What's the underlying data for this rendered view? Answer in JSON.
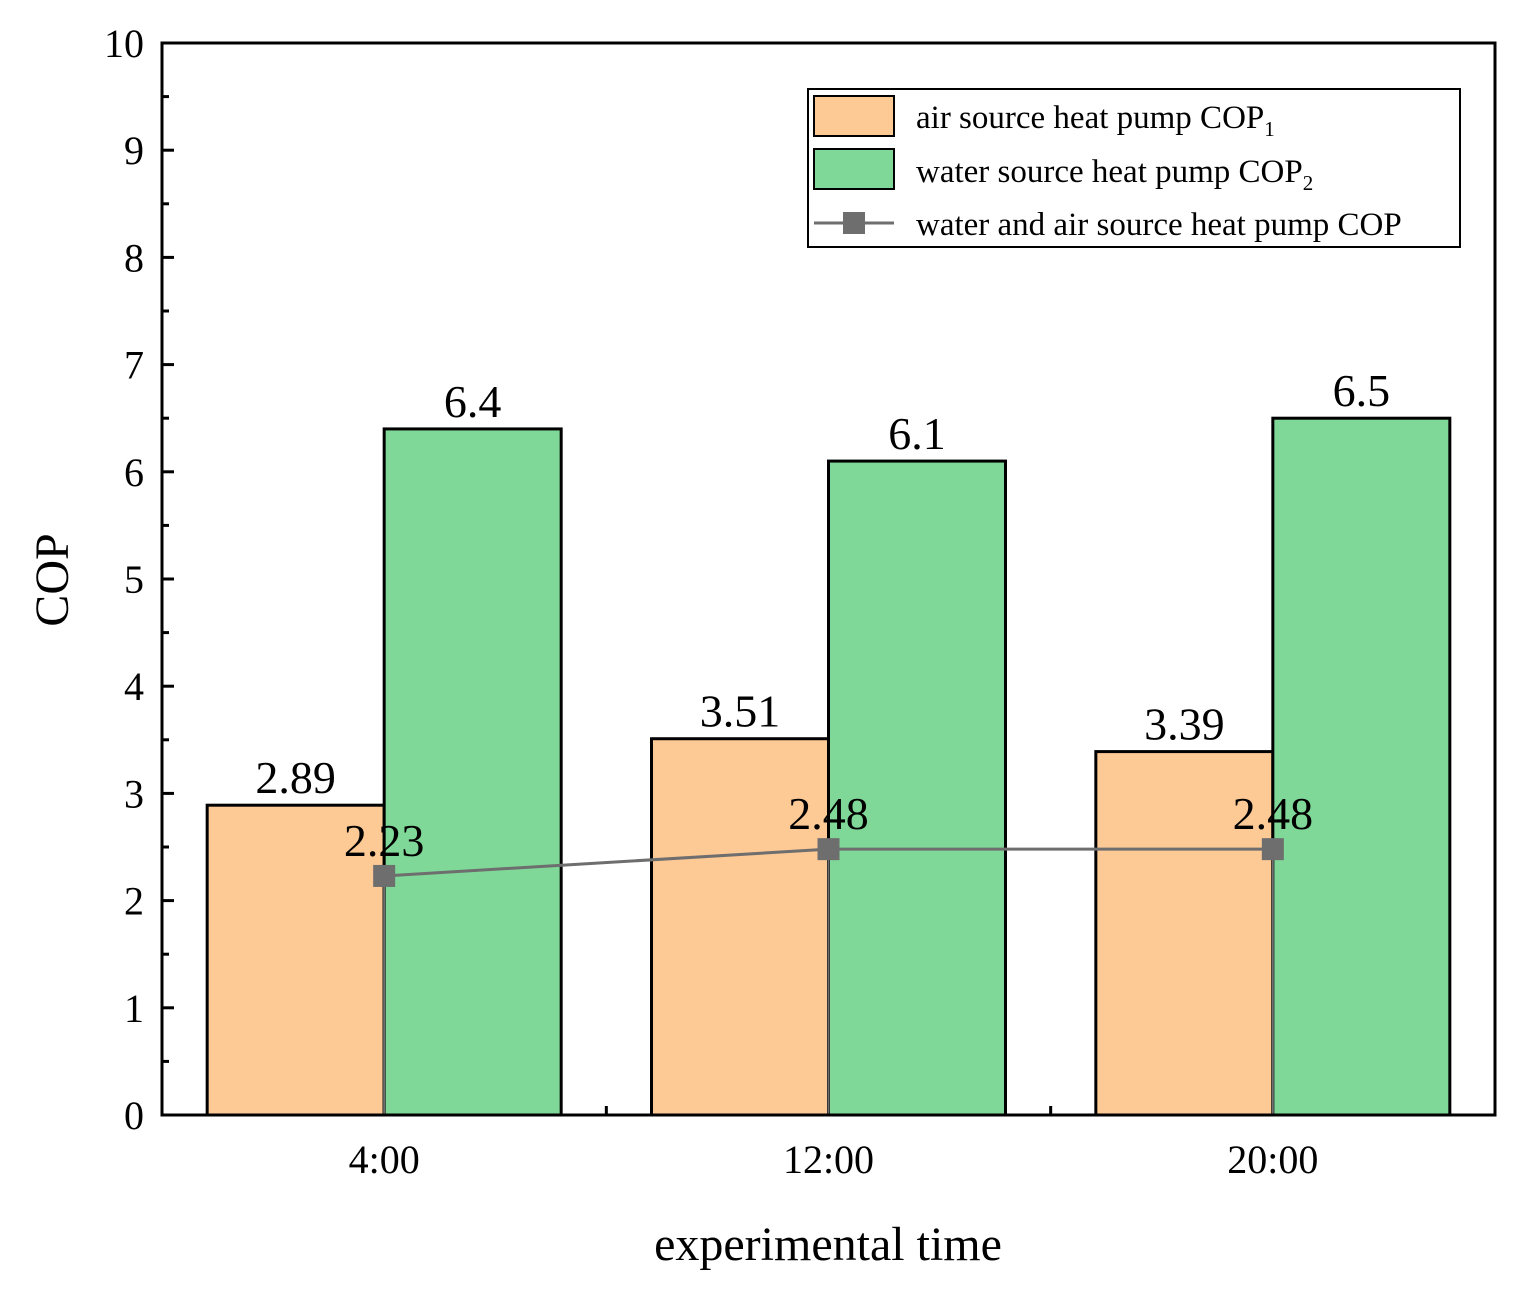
{
  "chart_data": {
    "type": "bar",
    "categories": [
      "4:00",
      "12:00",
      "20:00"
    ],
    "series": [
      {
        "name": "air source heat pump COP",
        "name_subscript": "1",
        "kind": "bar",
        "color": "#FDC995",
        "values": [
          2.89,
          3.51,
          3.39
        ],
        "labels": [
          "2.89",
          "3.51",
          "3.39"
        ]
      },
      {
        "name": "water source heat pump COP",
        "name_subscript": "2",
        "kind": "bar",
        "color": "#7FD898",
        "values": [
          6.4,
          6.1,
          6.5
        ],
        "labels": [
          "6.4",
          "6.1",
          "6.5"
        ]
      },
      {
        "name": "water and air source heat pump COP",
        "name_subscript": "",
        "kind": "line",
        "marker": "square",
        "color": "#6E6E6E",
        "values": [
          2.23,
          2.48,
          2.48
        ],
        "labels": [
          "2.23",
          "2.48",
          "2.48"
        ]
      }
    ],
    "xlabel": "experimental time",
    "ylabel": "COP",
    "ylim": [
      0,
      10
    ],
    "yticks": [
      "0",
      "1",
      "2",
      "3",
      "4",
      "5",
      "6",
      "7",
      "8",
      "9",
      "10"
    ],
    "grid": false,
    "legend_position": "top-right"
  }
}
